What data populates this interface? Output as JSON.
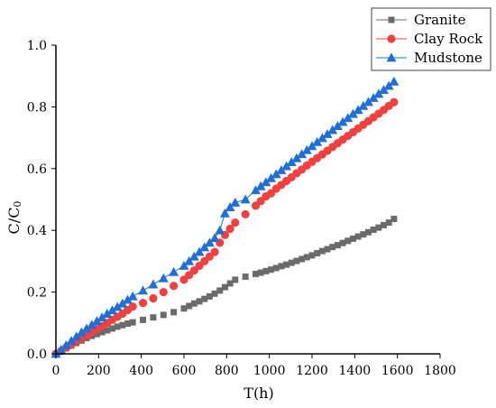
{
  "chart_data": {
    "type": "scatter",
    "title": "",
    "xlabel": "T(h)",
    "ylabel": {
      "main": "C/C",
      "sub": "0"
    },
    "xlim": [
      0,
      1800
    ],
    "ylim": [
      0,
      1.0
    ],
    "xticks": [
      0,
      200,
      400,
      600,
      800,
      1000,
      1200,
      1400,
      1600,
      1800
    ],
    "yticks": [
      0.0,
      0.2,
      0.4,
      0.6,
      0.8,
      1.0
    ],
    "ytick_labels": [
      "0.0",
      "0.2",
      "0.4",
      "0.6",
      "0.8",
      "1.0"
    ],
    "grid": false,
    "legend_position": "top-right",
    "series": [
      {
        "name": "Granite",
        "color": "#6b6b6b",
        "marker": "square",
        "connected": false,
        "x": [
          0,
          24,
          48,
          72,
          96,
          120,
          144,
          168,
          192,
          216,
          240,
          264,
          288,
          312,
          336,
          360,
          408,
          456,
          504,
          552,
          600,
          624,
          648,
          672,
          696,
          720,
          744,
          768,
          792,
          816,
          840,
          888,
          936,
          960,
          984,
          1008,
          1032,
          1056,
          1080,
          1104,
          1128,
          1152,
          1176,
          1200,
          1224,
          1248,
          1272,
          1296,
          1320,
          1344,
          1368,
          1392,
          1416,
          1440,
          1464,
          1488,
          1512,
          1536,
          1560,
          1584
        ],
        "y": [
          0.0,
          0.008,
          0.018,
          0.027,
          0.035,
          0.043,
          0.051,
          0.058,
          0.064,
          0.07,
          0.076,
          0.082,
          0.088,
          0.093,
          0.098,
          0.102,
          0.11,
          0.118,
          0.126,
          0.135,
          0.147,
          0.155,
          0.163,
          0.17,
          0.178,
          0.186,
          0.195,
          0.205,
          0.216,
          0.228,
          0.24,
          0.25,
          0.259,
          0.263,
          0.268,
          0.273,
          0.278,
          0.284,
          0.289,
          0.295,
          0.301,
          0.307,
          0.313,
          0.319,
          0.326,
          0.333,
          0.339,
          0.346,
          0.352,
          0.359,
          0.366,
          0.373,
          0.38,
          0.387,
          0.394,
          0.402,
          0.409,
          0.417,
          0.425,
          0.437
        ]
      },
      {
        "name": "Clay Rock",
        "color": "#f04040",
        "marker": "circle",
        "connected": false,
        "x": [
          0,
          24,
          48,
          72,
          96,
          120,
          144,
          168,
          192,
          216,
          240,
          264,
          288,
          312,
          336,
          360,
          408,
          456,
          504,
          552,
          600,
          624,
          648,
          672,
          696,
          720,
          744,
          768,
          792,
          816,
          840,
          888,
          936,
          960,
          984,
          1008,
          1032,
          1056,
          1080,
          1104,
          1128,
          1152,
          1176,
          1200,
          1224,
          1248,
          1272,
          1296,
          1320,
          1344,
          1368,
          1392,
          1416,
          1440,
          1464,
          1488,
          1512,
          1536,
          1560,
          1584
        ],
        "y": [
          0.0,
          0.009,
          0.02,
          0.03,
          0.04,
          0.05,
          0.06,
          0.07,
          0.08,
          0.09,
          0.1,
          0.11,
          0.12,
          0.13,
          0.142,
          0.153,
          0.165,
          0.18,
          0.2,
          0.22,
          0.24,
          0.255,
          0.27,
          0.285,
          0.3,
          0.315,
          0.33,
          0.36,
          0.385,
          0.405,
          0.425,
          0.452,
          0.48,
          0.495,
          0.51,
          0.52,
          0.535,
          0.547,
          0.56,
          0.572,
          0.585,
          0.597,
          0.61,
          0.622,
          0.634,
          0.646,
          0.658,
          0.67,
          0.682,
          0.694,
          0.706,
          0.718,
          0.73,
          0.742,
          0.754,
          0.766,
          0.778,
          0.79,
          0.803,
          0.815
        ]
      },
      {
        "name": "Mudstone",
        "color": "#1f6fd6",
        "marker": "triangle",
        "connected": true,
        "x": [
          0,
          24,
          48,
          72,
          96,
          120,
          144,
          168,
          192,
          216,
          240,
          264,
          288,
          312,
          336,
          360,
          408,
          456,
          504,
          552,
          600,
          624,
          648,
          672,
          696,
          720,
          744,
          768,
          792,
          816,
          840,
          888,
          936,
          960,
          984,
          1008,
          1032,
          1056,
          1080,
          1104,
          1128,
          1152,
          1176,
          1200,
          1224,
          1248,
          1272,
          1296,
          1320,
          1344,
          1368,
          1392,
          1416,
          1440,
          1464,
          1488,
          1512,
          1536,
          1560,
          1584
        ],
        "y": [
          0.0,
          0.013,
          0.028,
          0.042,
          0.056,
          0.07,
          0.082,
          0.094,
          0.106,
          0.118,
          0.13,
          0.141,
          0.152,
          0.163,
          0.175,
          0.186,
          0.205,
          0.225,
          0.245,
          0.265,
          0.285,
          0.3,
          0.315,
          0.33,
          0.345,
          0.36,
          0.375,
          0.4,
          0.455,
          0.475,
          0.49,
          0.5,
          0.53,
          0.543,
          0.556,
          0.569,
          0.582,
          0.595,
          0.608,
          0.621,
          0.634,
          0.647,
          0.66,
          0.673,
          0.686,
          0.699,
          0.712,
          0.725,
          0.738,
          0.751,
          0.764,
          0.777,
          0.79,
          0.803,
          0.816,
          0.829,
          0.842,
          0.855,
          0.868,
          0.882
        ]
      }
    ]
  }
}
